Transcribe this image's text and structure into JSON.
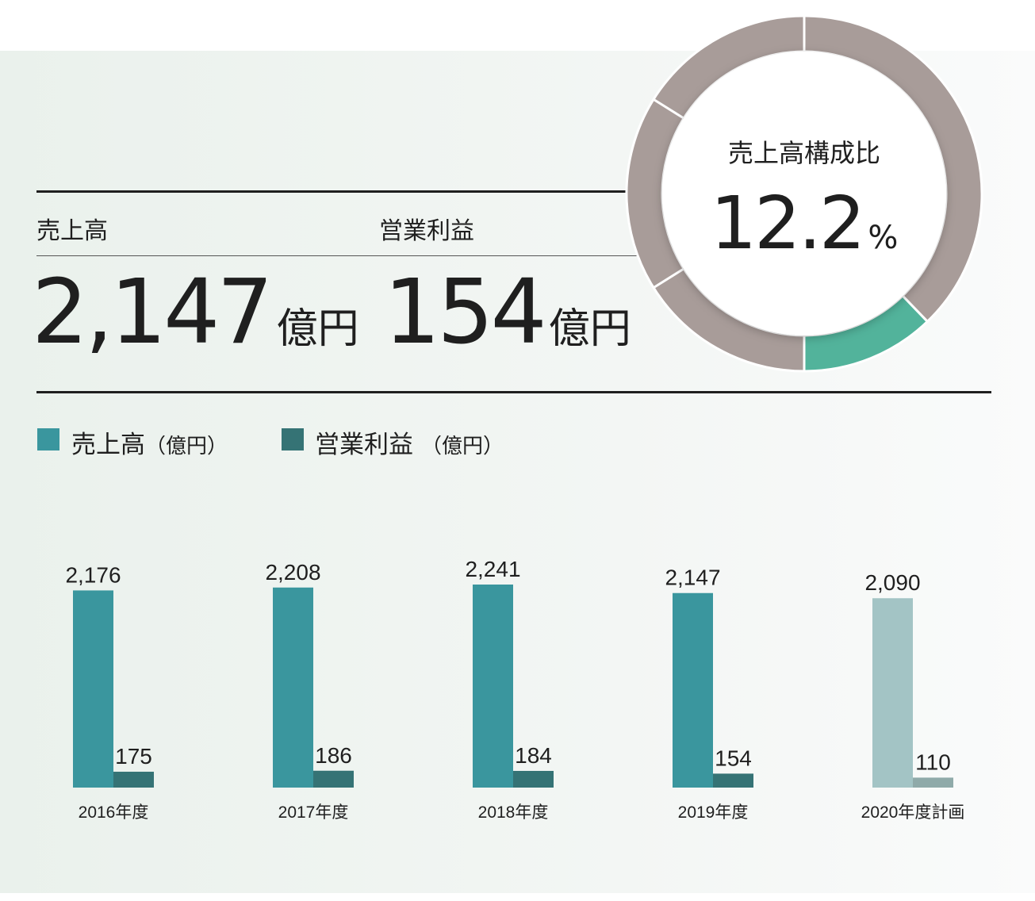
{
  "kpi": {
    "sales_label": "売上高",
    "sales_value": "2,147",
    "sales_unit": "億円",
    "profit_label": "営業利益",
    "profit_value": "154",
    "profit_unit": "億円"
  },
  "donut": {
    "title": "売上高構成比",
    "value": "12.2",
    "unit": "%"
  },
  "legend": [
    {
      "name": "売上高",
      "unit": "（億円）",
      "color": "#3a969e"
    },
    {
      "name": "営業利益",
      "unit": "（億円）",
      "color": "#357375"
    }
  ],
  "chart_data": [
    {
      "type": "pie",
      "variant": "donut",
      "slices": [
        {
          "value": 12.2,
          "color": "#52b39b"
        },
        {
          "value": 87.8,
          "color": "#a89c99"
        }
      ]
    },
    {
      "type": "bar",
      "categories": [
        "2016年度",
        "2017年度",
        "2018年度",
        "2019年度",
        "2020年度計画"
      ],
      "series": [
        {
          "name": "売上高",
          "values": [
            2176,
            2208,
            2241,
            2147,
            2090
          ],
          "labels": [
            "2,176",
            "2,208",
            "2,241",
            "2,147",
            "2,090"
          ],
          "color": "#3a969e",
          "plan_color": "#a3c4c5"
        },
        {
          "name": "営業利益",
          "values": [
            175,
            186,
            184,
            154,
            110
          ],
          "labels": [
            "175",
            "186",
            "184",
            "154",
            "110"
          ],
          "color": "#357375",
          "plan_color": "#8faaa9"
        }
      ],
      "plan_category_index": 4,
      "legend": "top-left",
      "grid": false
    }
  ]
}
